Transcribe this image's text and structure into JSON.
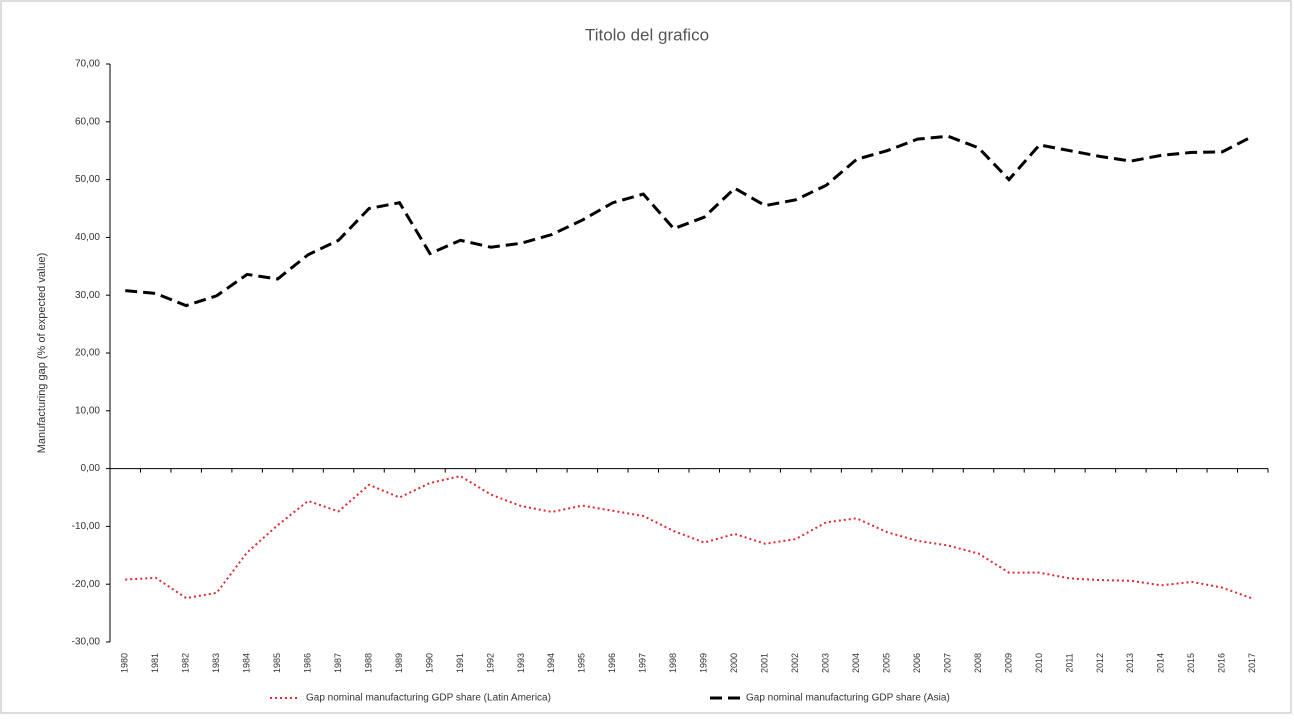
{
  "chart_data": {
    "type": "line",
    "title": "Titolo del grafico",
    "y_label": "Manufacturing gap (% of expected value)",
    "categories": [
      "1980",
      "1981",
      "1982",
      "1983",
      "1984",
      "1985",
      "1986",
      "1987",
      "1988",
      "1989",
      "1990",
      "1991",
      "1992",
      "1993",
      "1994",
      "1995",
      "1996",
      "1997",
      "1998",
      "1999",
      "2000",
      "2001",
      "2002",
      "2003",
      "2004",
      "2005",
      "2006",
      "2007",
      "2008",
      "2009",
      "2010",
      "2011",
      "2012",
      "2013",
      "2014",
      "2015",
      "2016",
      "2017"
    ],
    "series": [
      {
        "name": "Gap nominal manufacturing GDP share (Latin America)",
        "color": "#e0282e",
        "linestyle": "dotted",
        "values": [
          -19.2,
          -18.9,
          -22.4,
          -21.5,
          -14.5,
          -9.8,
          -5.6,
          -7.4,
          -2.8,
          -5,
          -2.5,
          -1.3,
          -4.5,
          -6.5,
          -7.5,
          -6.4,
          -7.3,
          -8.2,
          -10.8,
          -12.8,
          -11.3,
          -13,
          -12.2,
          -9.3,
          -8.6,
          -11,
          -12.5,
          -13.3,
          -14.7,
          -18,
          -18,
          -19,
          -19.3,
          -19.4,
          -20.2,
          -19.6,
          -20.6,
          -22.5
        ]
      },
      {
        "name": "Gap nominal manufacturing GDP share (Asia)",
        "color": "#000000",
        "linestyle": "dashed",
        "values": [
          30.8,
          30.3,
          28.2,
          29.9,
          33.6,
          32.8,
          37,
          39.5,
          45,
          46,
          37.2,
          39.5,
          38.3,
          39,
          40.5,
          43,
          46,
          47.5,
          41.5,
          43.5,
          48.5,
          45.5,
          46.5,
          49,
          53.5,
          55,
          57,
          57.5,
          55.5,
          50,
          56,
          55,
          54,
          53.2,
          54.2,
          54.7,
          54.8,
          57.5
        ]
      }
    ],
    "ylim": [
      -30,
      70
    ],
    "yticks": [
      {
        "value": -30,
        "label": "-30,00"
      },
      {
        "value": -20,
        "label": "-20,00"
      },
      {
        "value": -10,
        "label": "-10,00"
      },
      {
        "value": 0,
        "label": "0,00"
      },
      {
        "value": 10,
        "label": "10,00"
      },
      {
        "value": 20,
        "label": "20,00"
      },
      {
        "value": 30,
        "label": "30,00"
      },
      {
        "value": 40,
        "label": "40,00"
      },
      {
        "value": 50,
        "label": "50,00"
      },
      {
        "value": 60,
        "label": "60,00"
      },
      {
        "value": 70,
        "label": "70,00"
      }
    ],
    "grid": false,
    "legend": "bottom"
  }
}
